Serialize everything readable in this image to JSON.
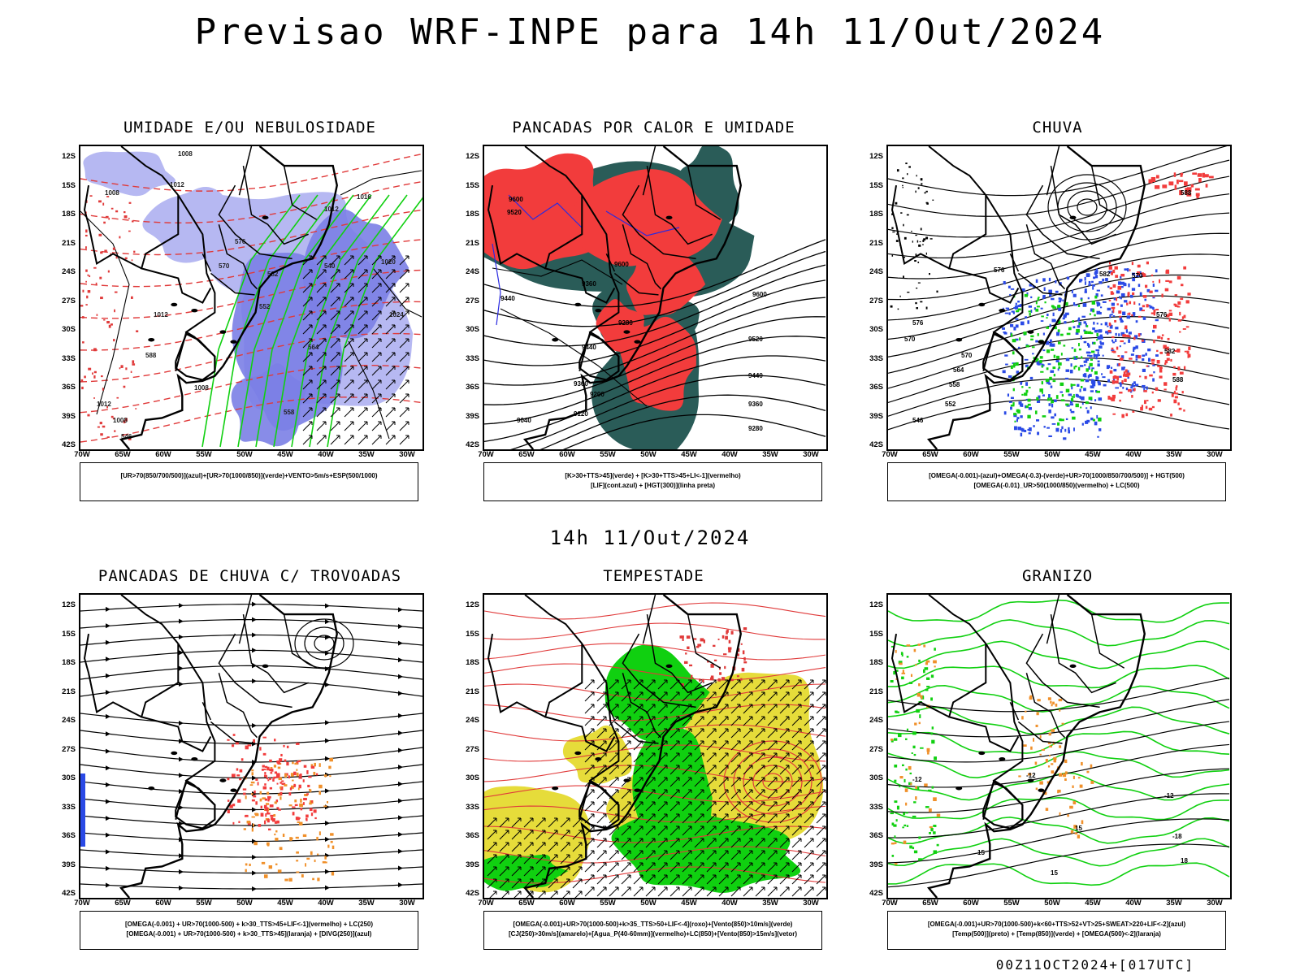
{
  "header": {
    "title": "Previsao WRF-INPE  para 14h 11/Out/2024",
    "mid_title": "14h 11/Out/2024",
    "footer": "00Z11OCT2024+[017UTC]"
  },
  "axes": {
    "lat_labels": [
      "12S",
      "15S",
      "18S",
      "21S",
      "24S",
      "27S",
      "30S",
      "33S",
      "36S",
      "39S",
      "42S"
    ],
    "lon_labels": [
      "70W",
      "65W",
      "60W",
      "55W",
      "50W",
      "45W",
      "40W",
      "35W",
      "30W"
    ]
  },
  "colors": {
    "blue_shade": "#7b7fe6",
    "light_blue": "#b6b8f2",
    "red": "#f23c3c",
    "dark_teal": "#2a5c58",
    "green": "#10d010",
    "yellow": "#e6dc3a",
    "orange": "#f0902a"
  },
  "panels": [
    {
      "id": "umidade",
      "title": "UMIDADE E/OU NEBULOSIDADE",
      "legend": [
        "[UR>70(850/700/500)](azul)+[UR>70(1000/850)](verde)+VENTO>5m/s+ESP(500/1000)"
      ],
      "labels": [
        "1008",
        "1008",
        "1012",
        "1016",
        "1020",
        "1024",
        "1012",
        "1008",
        "1012",
        "1008",
        "1012",
        "570",
        "576",
        "582",
        "564",
        "558",
        "546",
        "540",
        "588",
        "552"
      ]
    },
    {
      "id": "pancadas",
      "title": "PANCADAS POR CALOR E UMIDADE",
      "legend": [
        "[K>30+TTS>45](verde) + [K>30+TTS>45+LI<-1](vermelho)",
        "[LIF](cont.azul) + [HGT(300)](linha preta)"
      ],
      "labels": [
        "9600",
        "9520",
        "9440",
        "9360",
        "9280",
        "9200",
        "9120",
        "9040",
        "9600",
        "9520",
        "9440",
        "9360",
        "9280",
        "9440",
        "9360",
        "9600"
      ]
    },
    {
      "id": "chuva",
      "title": "CHUVA",
      "legend": [
        "[OMEGA(-0.001)-(azul)+OMEGA(-0.3)-(verde)+UR>70(1000/850/700/500)] + HGT(500)",
        "[OMEGA(-0.01)_UR>50(1000/850)(vermelho) + LC(500)"
      ],
      "labels": [
        "576",
        "570",
        "564",
        "558",
        "552",
        "546",
        "582",
        "588",
        "570",
        "576",
        "582",
        "588",
        "570",
        "576"
      ]
    },
    {
      "id": "trovoadas",
      "title": "PANCADAS DE CHUVA C/ TROVOADAS",
      "legend": [
        "[OMEGA(-0.001) + UR>70(1000-500) + k>30_TTS>45+LIF<-1](vermelho) + LC(250)",
        "[OMEGA(-0.001) + UR>70(1000-500) + k>30_TTS>45](laranja) + [DIVG(250)](azul)"
      ],
      "labels": []
    },
    {
      "id": "tempestade",
      "title": "TEMPESTADE",
      "legend": [
        "[OMEGA(-0.001)+UR>70(1000-500)+k>35_TTS>50+LIF<-4](roxo)+[Vento(850)>10m/s](verde)",
        "[CJ(250)>30m/s](amarelo)+[Agua_P(40-60mm)](vermelho)+LC(850)+[Vento(850)>15m/s](vetor)"
      ],
      "labels": []
    },
    {
      "id": "granizo",
      "title": "GRANIZO",
      "legend": [
        "[OMEGA(-0.001)+UR>70(1000-500)+k<60+TTS>52+VT>25+SWEAT>220+LIF<-2](azul)",
        "[Temp(500)](preto) + [Temp(850)](verde) + [OMEGA(500)<-2](laranja)"
      ],
      "labels": [
        "-12",
        "-12",
        "-12",
        "15",
        "15",
        "15",
        "-18",
        "18"
      ]
    }
  ]
}
